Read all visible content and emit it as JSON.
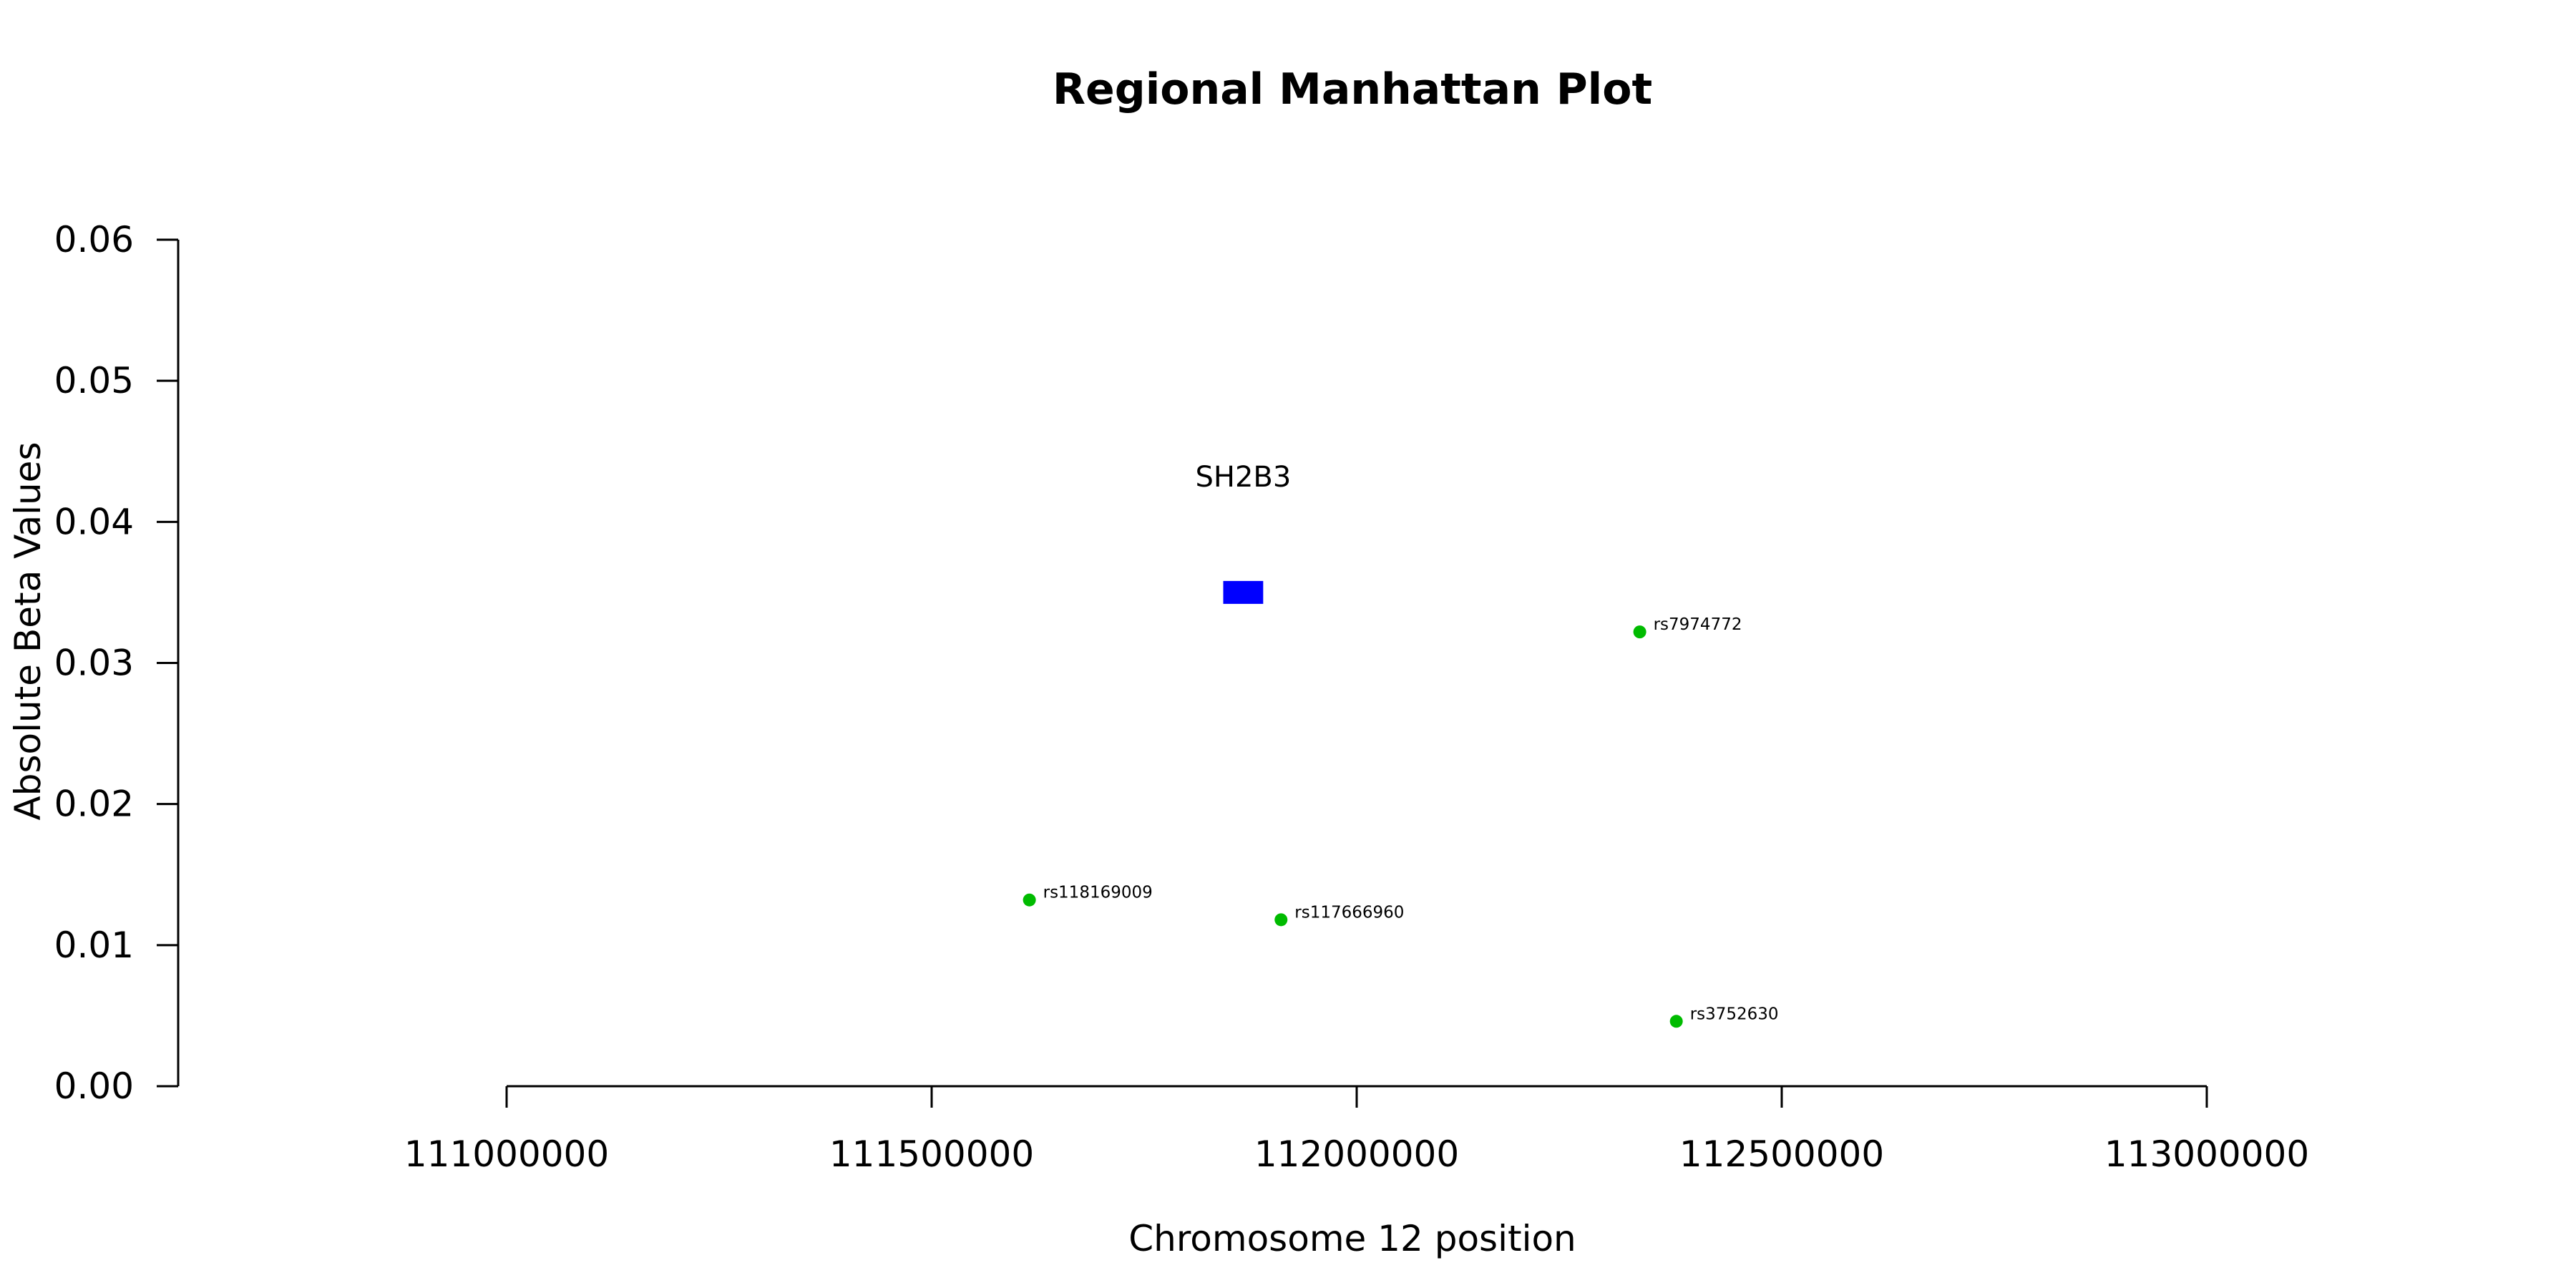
{
  "chart_data": {
    "type": "scatter",
    "title": "Regional Manhattan Plot",
    "xlabel": "Chromosome 12 position",
    "ylabel": "Absolute Beta Values",
    "xlim": [
      111000000,
      113000000
    ],
    "ylim": [
      0,
      0.06
    ],
    "x_ticks": [
      111000000,
      111500000,
      112000000,
      112500000,
      113000000
    ],
    "y_ticks": [
      0.0,
      0.01,
      0.02,
      0.03,
      0.04,
      0.05,
      0.06
    ],
    "y_tick_labels": [
      "0.00",
      "0.01",
      "0.02",
      "0.03",
      "0.04",
      "0.05",
      "0.06"
    ],
    "x_tick_labels": [
      "111000000",
      "111500000",
      "112000000",
      "112500000",
      "113000000"
    ],
    "grid": false,
    "point_color": "#00bb00",
    "points": [
      {
        "label": "rs118169009",
        "x": 111615000,
        "y": 0.0132
      },
      {
        "label": "rs117666960",
        "x": 111911000,
        "y": 0.0118
      },
      {
        "label": "rs7974772",
        "x": 112333000,
        "y": 0.0322
      },
      {
        "label": "rs3752630",
        "x": 112376000,
        "y": 0.0046
      }
    ],
    "genes": [
      {
        "name": "SH2B3",
        "start": 111843000,
        "end": 111890000,
        "y": 0.035,
        "color": "#0000ff"
      }
    ]
  }
}
